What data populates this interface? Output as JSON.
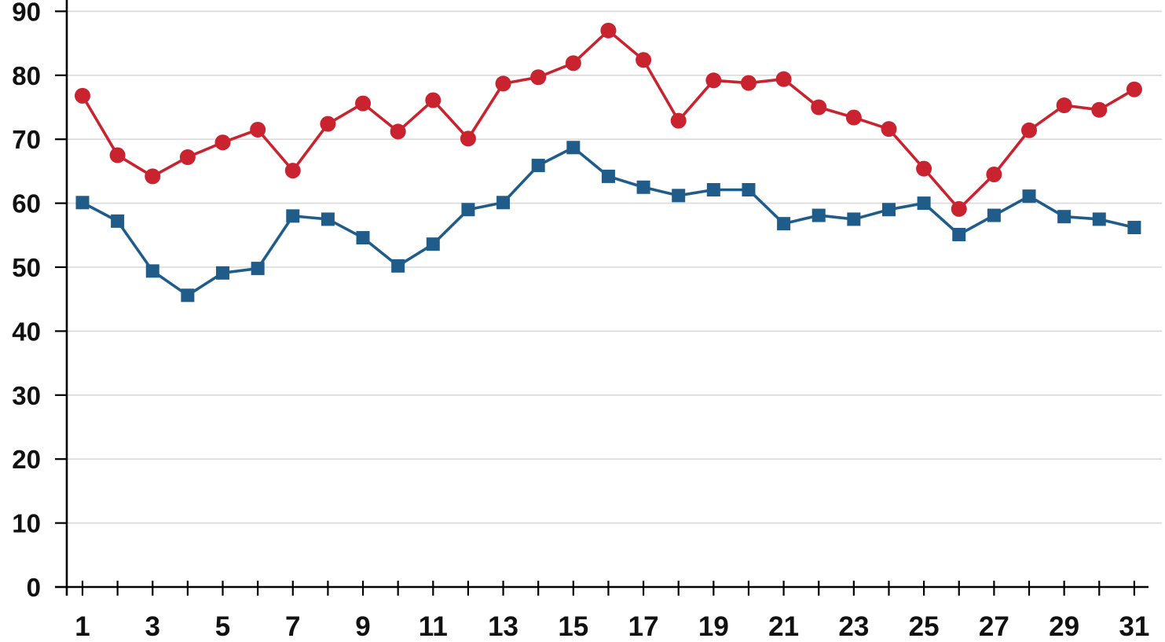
{
  "chart_data": {
    "type": "line",
    "x": [
      1,
      2,
      3,
      4,
      5,
      6,
      7,
      8,
      9,
      10,
      11,
      12,
      13,
      14,
      15,
      16,
      17,
      18,
      19,
      20,
      21,
      22,
      23,
      24,
      25,
      26,
      27,
      28,
      29,
      30,
      31
    ],
    "series": [
      {
        "name": "red-circle-series",
        "marker": "circle",
        "color": "#C8232F",
        "values": [
          76.8,
          67.5,
          64.2,
          67.2,
          69.5,
          71.5,
          65.1,
          72.4,
          75.6,
          71.2,
          76.1,
          70.1,
          78.7,
          79.7,
          81.9,
          87.0,
          82.4,
          72.9,
          79.2,
          78.8,
          79.4,
          75.0,
          73.4,
          71.6,
          65.4,
          59.1,
          64.5,
          71.4,
          75.3,
          74.6,
          77.8
        ]
      },
      {
        "name": "blue-square-series",
        "marker": "square",
        "color": "#1F5C8A",
        "values": [
          60.1,
          57.2,
          49.4,
          45.6,
          49.1,
          49.8,
          58.0,
          57.5,
          54.6,
          50.2,
          53.6,
          59.0,
          60.1,
          65.9,
          68.7,
          64.2,
          62.5,
          61.2,
          62.1,
          62.1,
          56.8,
          58.1,
          57.5,
          59.0,
          60.0,
          55.1,
          58.1,
          61.1,
          57.9,
          57.5,
          56.2
        ]
      }
    ],
    "title": "",
    "xlabel": "",
    "ylabel": "",
    "ylim": [
      0,
      92
    ],
    "yticks": [
      0,
      10,
      20,
      30,
      40,
      50,
      60,
      70,
      80,
      90
    ],
    "xtick_labels": [
      1,
      3,
      5,
      7,
      9,
      11,
      13,
      15,
      17,
      19,
      21,
      23,
      25,
      27,
      29,
      31
    ],
    "grid": "horizontal",
    "legend": "none",
    "axis_color": "#000000",
    "grid_color": "#d9d9d9",
    "background": "#ffffff"
  }
}
